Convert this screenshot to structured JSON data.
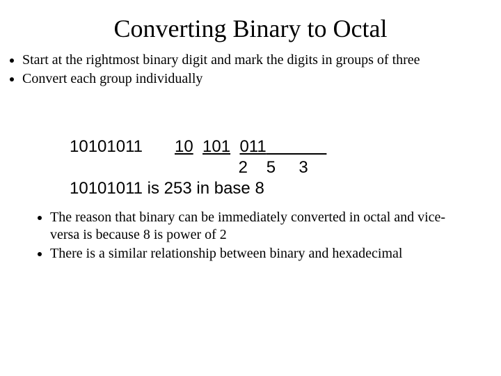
{
  "title": "Converting Binary to Octal",
  "top_bullets": [
    "Start at the rightmost binary digit and mark the digits in groups of three",
    "Convert each group individually"
  ],
  "example": {
    "binary": "10101011",
    "group1": "10",
    "group2": "101",
    "group3": "011",
    "trailing_underline_spaces": "             ",
    "digit1": "2",
    "digit2": "5",
    "digit3": "3",
    "result_line": "10101011 is 253 in base 8"
  },
  "bottom_bullets": [
    "The reason that binary can be immediately converted in octal and vice-versa is because 8 is power of 2",
    "There is a similar relationship between binary and hexadecimal"
  ],
  "style": {
    "background_color": "#ffffff",
    "text_color": "#000000",
    "title_fontsize": 36,
    "body_fontsize": 20,
    "example_fontsize": 24,
    "title_font": "Times New Roman",
    "body_font": "Times New Roman",
    "example_font": "Arial"
  }
}
